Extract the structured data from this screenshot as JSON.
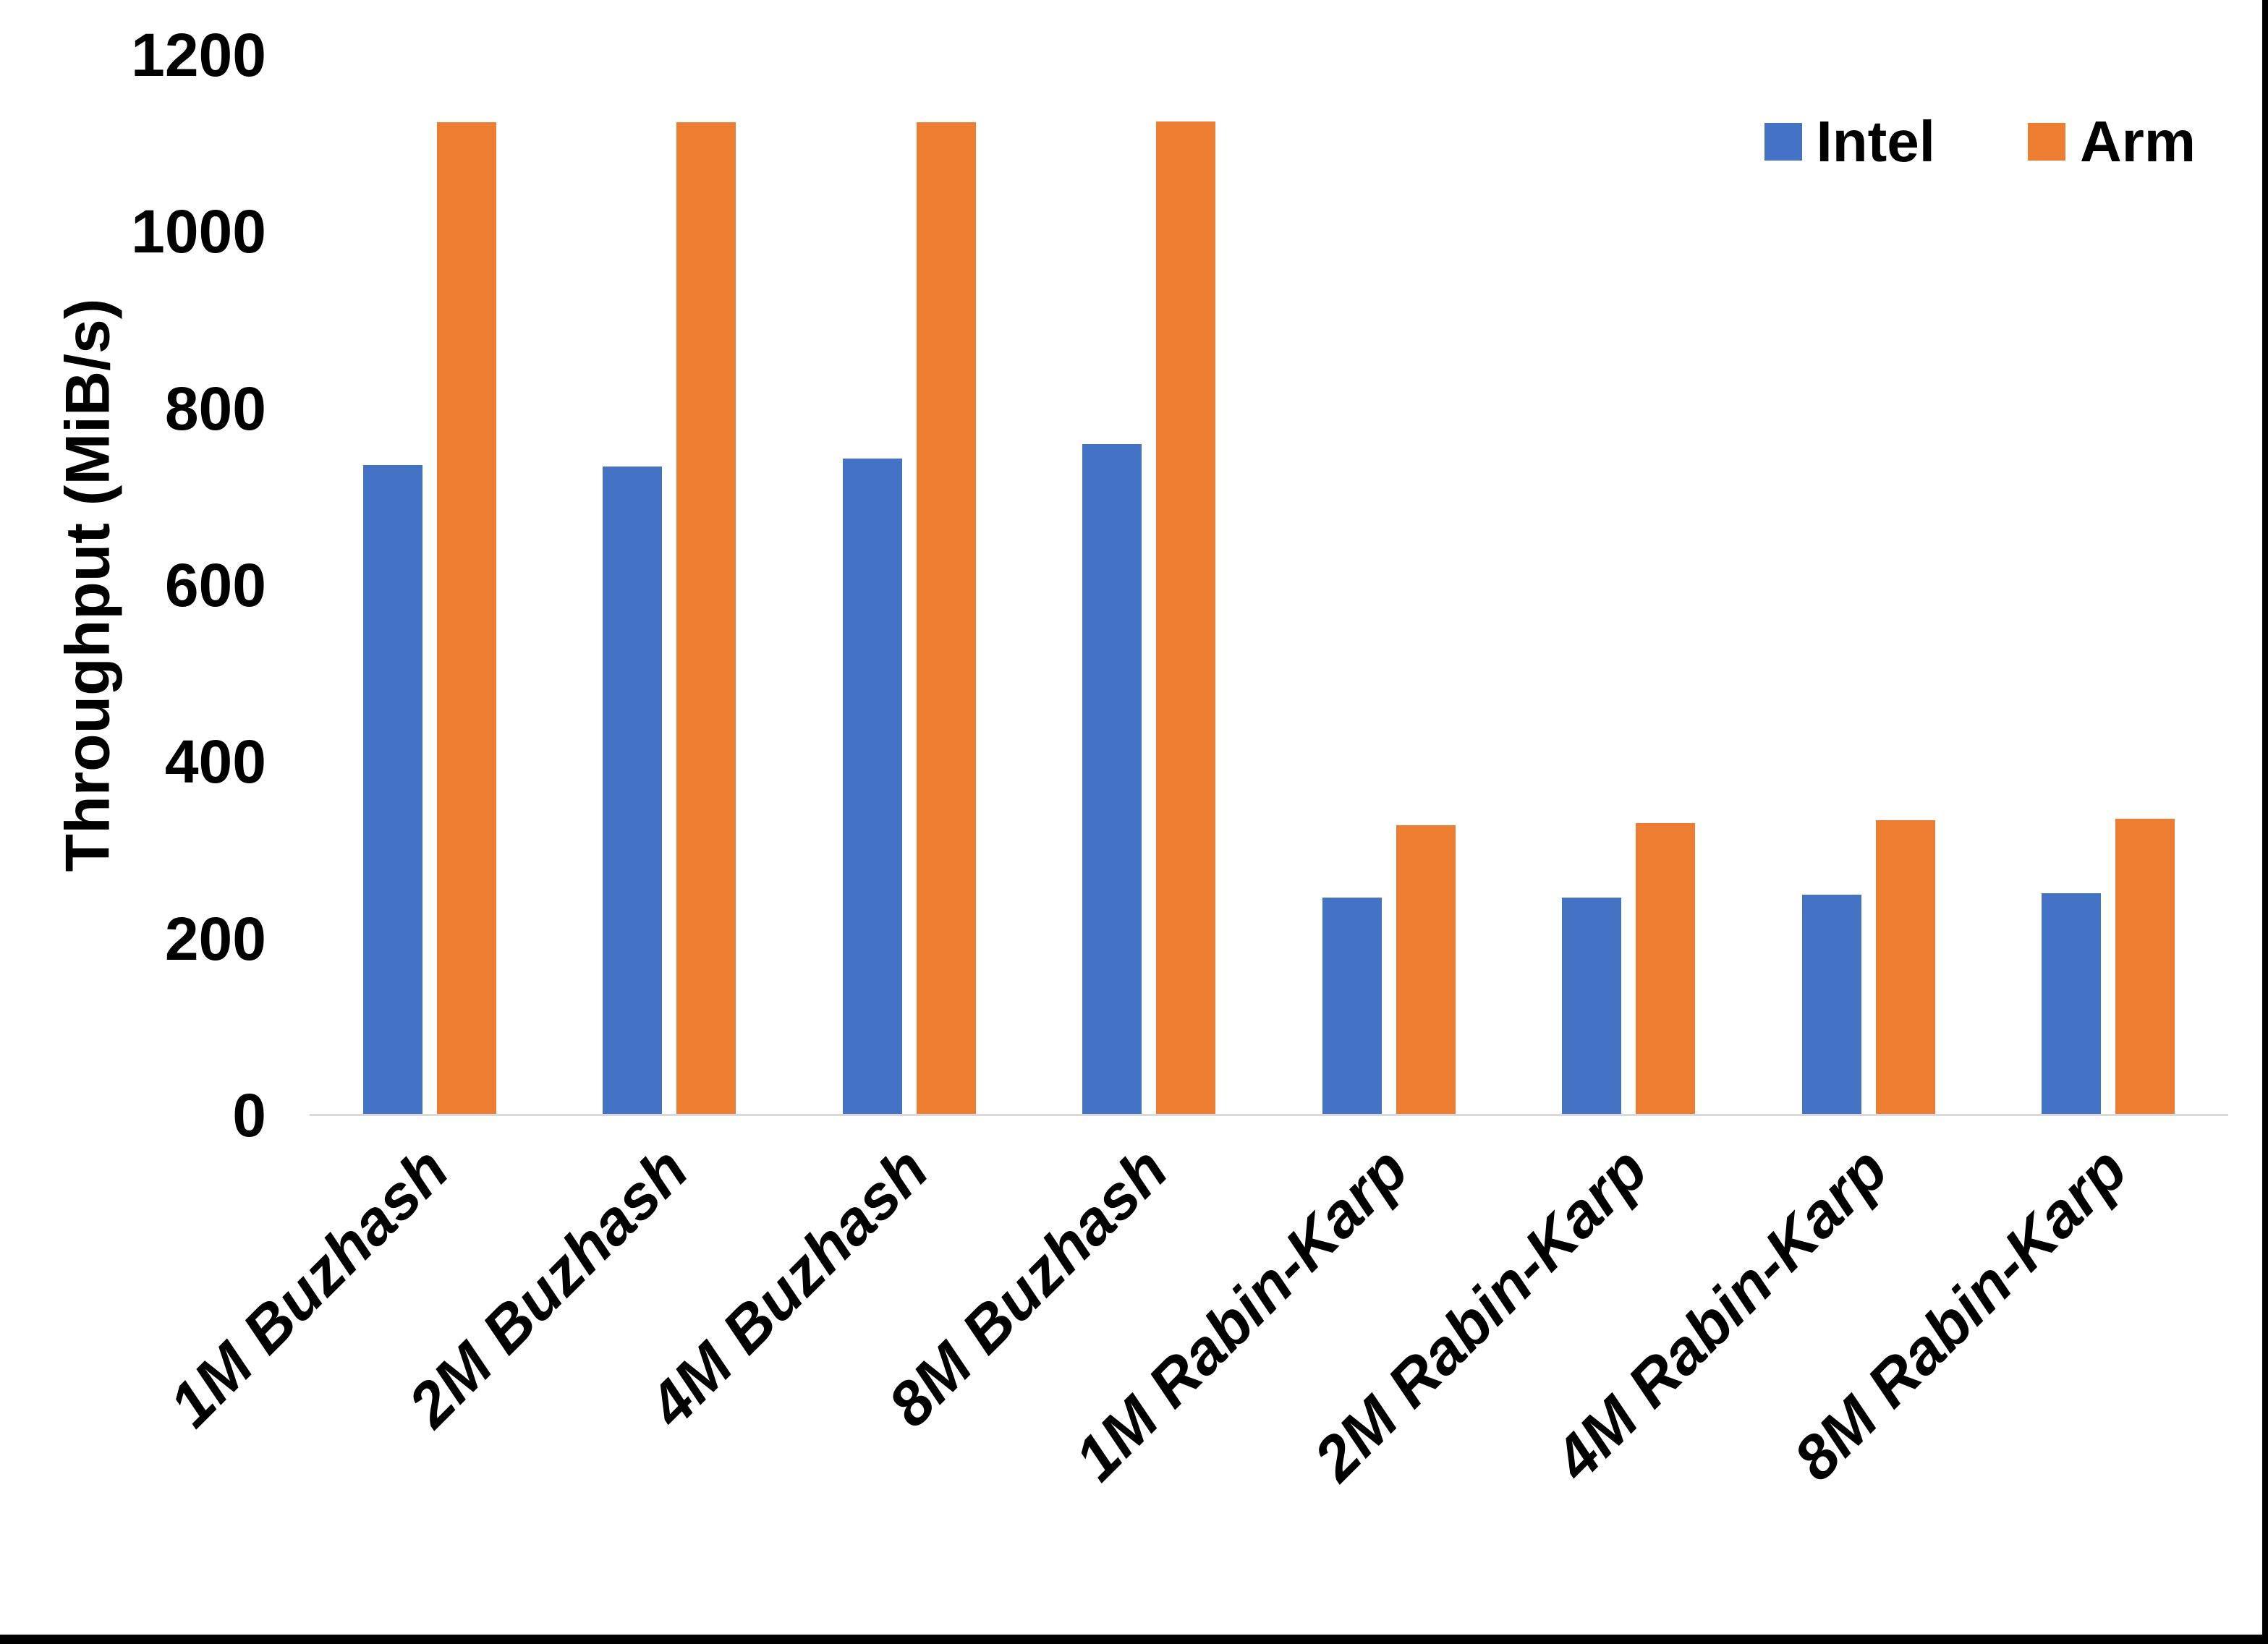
{
  "chart_data": {
    "type": "bar",
    "title": "",
    "xlabel": "",
    "ylabel": "Throughput (MiB/s)",
    "ylim": [
      0,
      1200
    ],
    "yticks": [
      0,
      200,
      400,
      600,
      800,
      1000,
      1200
    ],
    "grid": false,
    "legend_position": "top-right",
    "categories": [
      "1M Buzhash",
      "2M Buzhash",
      "4M Buzhash",
      "8M Buzhash",
      "1M Rabin-Karp",
      "2M Rabin-Karp",
      "4M Rabin-Karp",
      "8M Rabin-Karp"
    ],
    "series": [
      {
        "name": "Intel",
        "color": "#4472C4",
        "values": [
          736,
          734,
          743,
          760,
          246,
          246,
          250,
          251
        ]
      },
      {
        "name": "Arm",
        "color": "#ED7D31",
        "values": [
          1124,
          1124,
          1124,
          1125,
          328,
          331,
          334,
          336
        ]
      }
    ]
  },
  "colors": {
    "intel": "#4472C4",
    "arm": "#ED7D31",
    "axis_line": "#D9D9D9",
    "text": "#000000",
    "background": "#FFFFFF",
    "border": "#000000"
  }
}
